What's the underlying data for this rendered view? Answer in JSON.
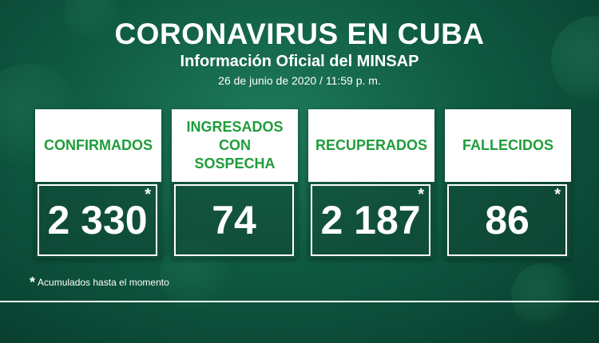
{
  "header": {
    "title": "CORONAVIRUS EN CUBA",
    "subtitle": "Información Oficial del MINSAP",
    "date": "26 de junio de 2020 / 11:59 p. m."
  },
  "cards": [
    {
      "label": "CONFIRMADOS",
      "value": "2 330",
      "mark": "*"
    },
    {
      "label": "INGRESADOS CON SOSPECHA",
      "value": "74",
      "mark": ""
    },
    {
      "label": "RECUPERADOS",
      "value": "2 187",
      "mark": "*"
    },
    {
      "label": "FALLECIDOS",
      "value": "86",
      "mark": "*"
    }
  ],
  "footnote": {
    "mark": "*",
    "text": "Acumulados hasta el momento"
  },
  "colors": {
    "label_green": "#1f9d3a",
    "background": "#0f5a42"
  }
}
